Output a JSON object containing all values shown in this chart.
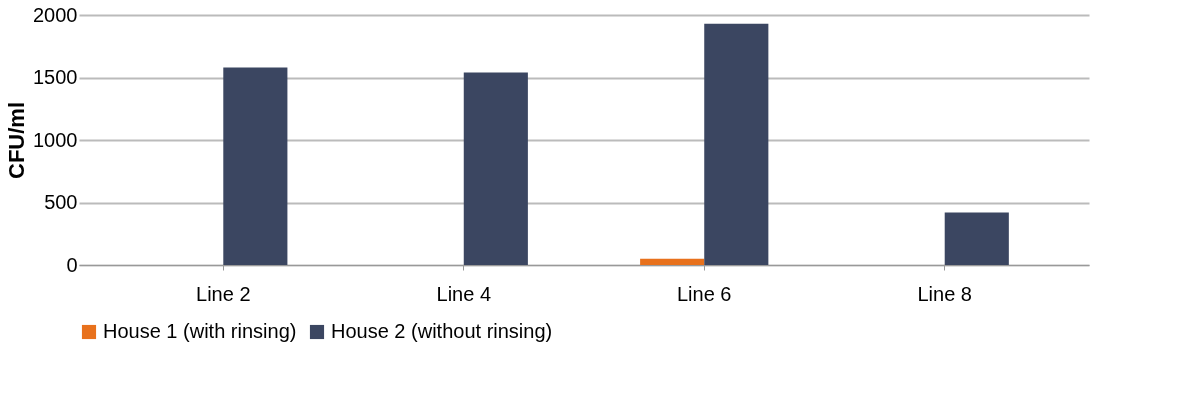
{
  "chart_data": {
    "type": "bar",
    "ylabel": "CFU/ml",
    "categories": [
      "Line 2",
      "Line 4",
      "Line 6",
      "Line 8"
    ],
    "series": [
      {
        "name": "House 1 (with rinsing)",
        "color": "#e8711c",
        "values": [
          0,
          0,
          50,
          0
        ]
      },
      {
        "name": "House 2 (without rinsing)",
        "color": "#3b4661",
        "values": [
          1580,
          1540,
          1930,
          420
        ]
      }
    ],
    "ylim": [
      0,
      2000
    ],
    "yticks": [
      0,
      500,
      1000,
      1500,
      2000
    ],
    "grid": "y",
    "legend": "bottom"
  }
}
